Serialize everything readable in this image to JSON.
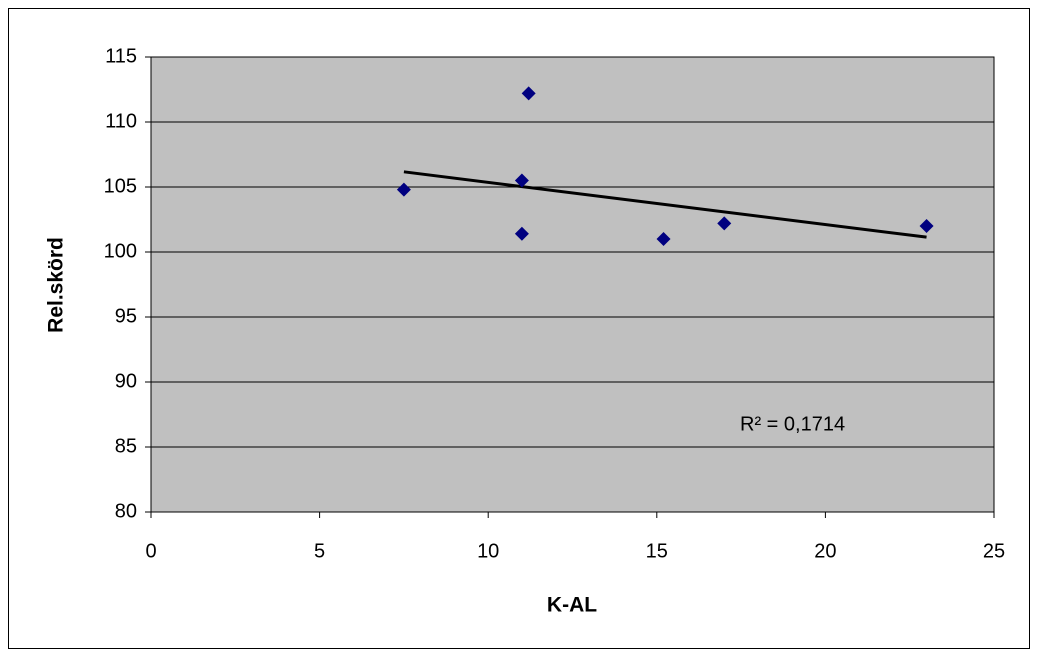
{
  "chart_data": {
    "type": "scatter",
    "x_label": "K-AL",
    "y_label": "Rel.skörd",
    "x": [
      7.5,
      11.2,
      11.0,
      11.0,
      15.2,
      17.0,
      23.0
    ],
    "values": [
      104.8,
      112.2,
      105.5,
      101.4,
      101.0,
      102.2,
      102.0
    ],
    "color": "#000080",
    "trendline": true,
    "trendline_color": "#000000",
    "annotation": "R² = 0,1714",
    "xlim": [
      0,
      25
    ],
    "xticks": [
      0,
      5,
      10,
      15,
      20,
      25
    ],
    "ylim": [
      80,
      115
    ],
    "yticks": [
      80,
      85,
      90,
      95,
      100,
      105,
      110,
      115
    ],
    "grid": true,
    "plot_background": "#c0c0c0"
  }
}
